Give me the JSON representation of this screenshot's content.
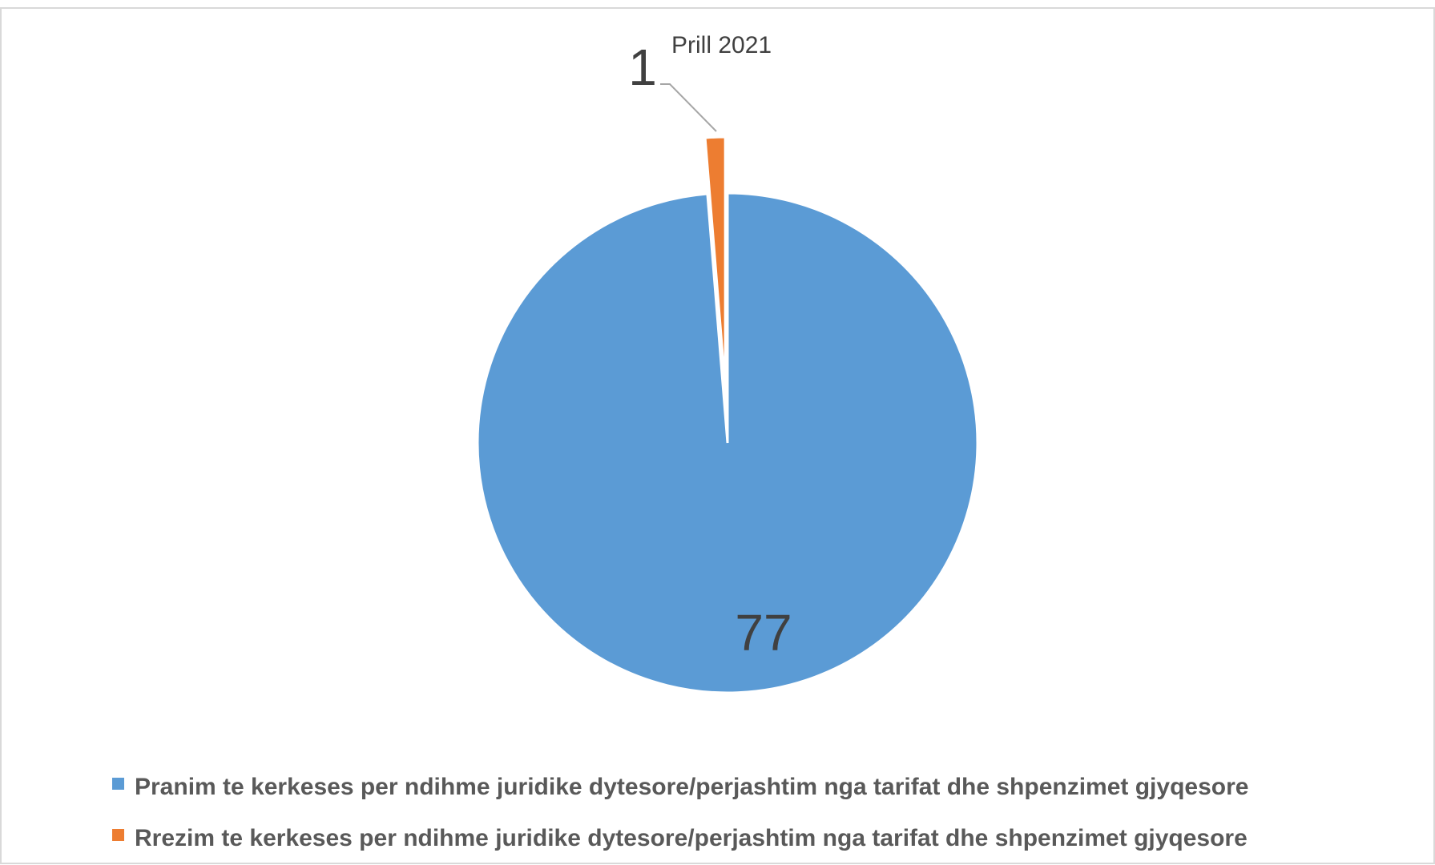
{
  "chart_data": {
    "type": "pie",
    "categories": [
      "Pranim te kerkeses per ndihme juridike dytesore/perjashtim nga tarifat dhe shpenzimet gjyqesore",
      "Rrezim te kerkeses per ndihme juridike dytesore/perjashtim nga tarifat dhe shpenzimet gjyqesore"
    ],
    "values": [
      77,
      1
    ],
    "value_labels": [
      "77",
      "1"
    ],
    "slice_annotation": "Prill 2021",
    "colors": [
      "#5B9BD5",
      "#ED7D31"
    ],
    "legend_position": "bottom",
    "title": ""
  }
}
